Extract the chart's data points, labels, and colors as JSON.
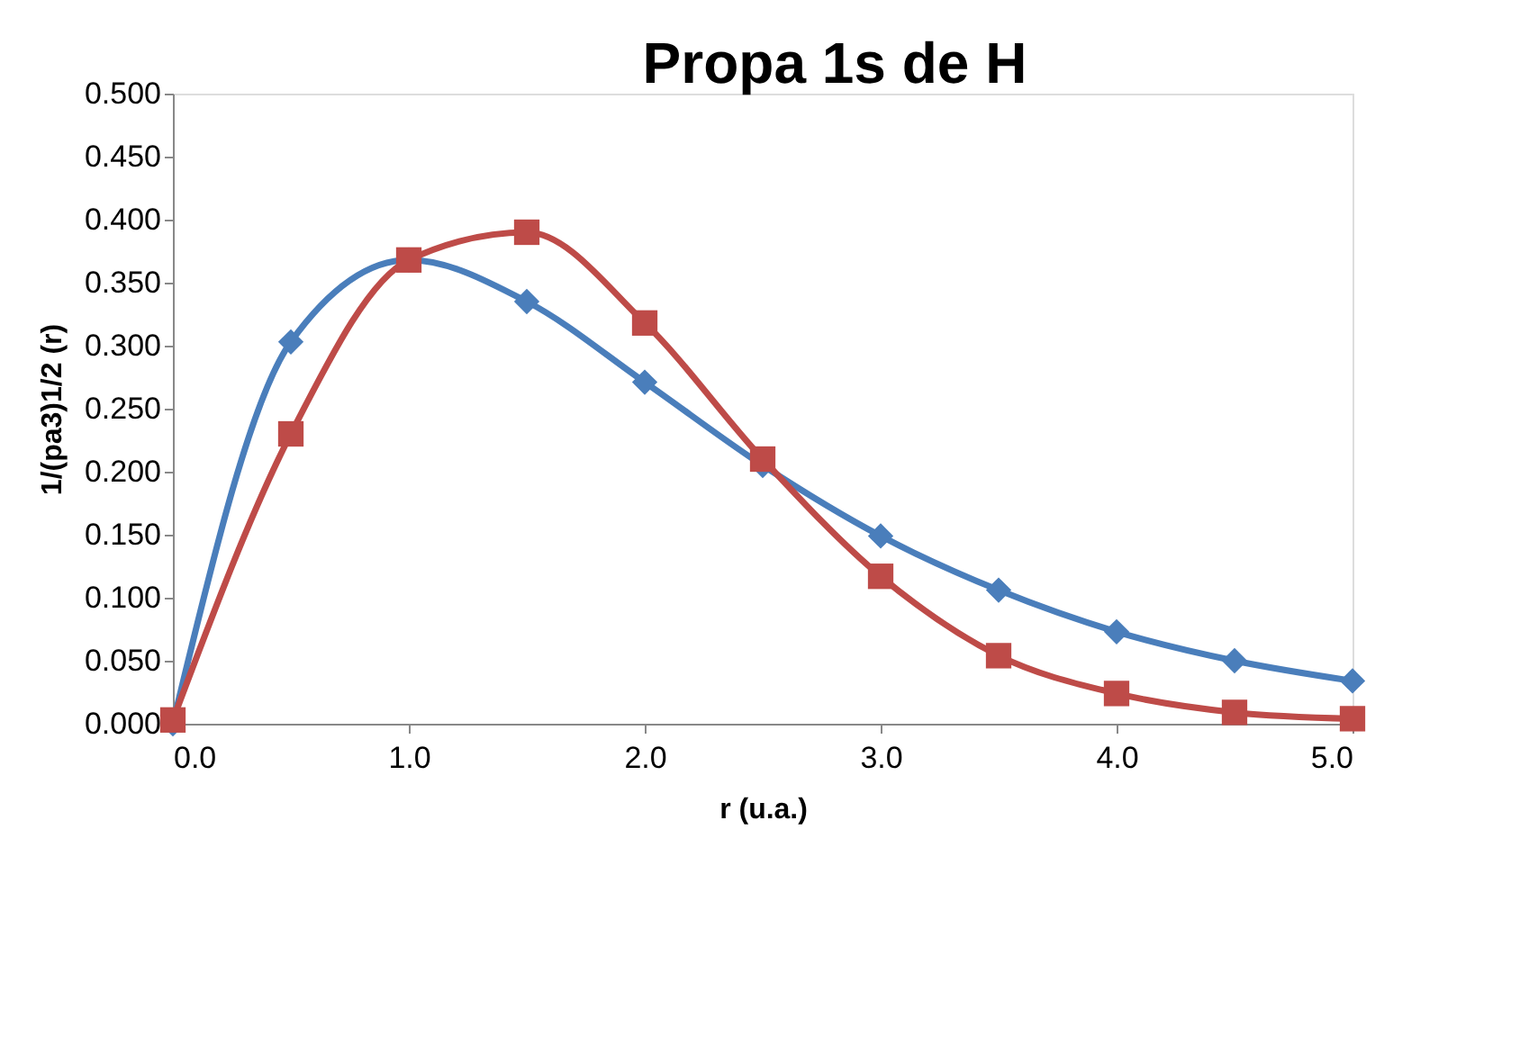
{
  "chart_data": {
    "type": "line",
    "title": "Propa 1s de H",
    "xlabel": "r (u.a.)",
    "ylabel": "1/(pa3)1/2 (r)",
    "x": [
      0,
      0.5,
      1,
      1.5,
      2,
      2.5,
      3,
      3.5,
      4,
      4.5,
      5
    ],
    "series": [
      {
        "color": "#4a7ebb",
        "marker": "diamond",
        "values": [
          0,
          0.303,
          0.368,
          0.335,
          0.271,
          0.205,
          0.149,
          0.106,
          0.073,
          0.05,
          0.034
        ]
      },
      {
        "color": "#be4b48",
        "marker": "square",
        "values": [
          0.003,
          0.23,
          0.368,
          0.39,
          0.318,
          0.21,
          0.117,
          0.054,
          0.024,
          0.009,
          0.004
        ]
      }
    ],
    "xlim": [
      0,
      5
    ],
    "xticks": [
      {
        "value": 0,
        "label": "0.0"
      },
      {
        "value": 1,
        "label": "1.0"
      },
      {
        "value": 2,
        "label": "2.0"
      },
      {
        "value": 3,
        "label": "3.0"
      },
      {
        "value": 4,
        "label": "4.0"
      },
      {
        "value": 5,
        "label": "5.0"
      }
    ],
    "ylim": [
      0,
      0.5
    ],
    "yticks": [
      {
        "value": 0,
        "label": "0.000"
      },
      {
        "value": 0.05,
        "label": "0.050"
      },
      {
        "value": 0.1,
        "label": "0.100"
      },
      {
        "value": 0.15,
        "label": "0.150"
      },
      {
        "value": 0.2,
        "label": "0.200"
      },
      {
        "value": 0.25,
        "label": "0.250"
      },
      {
        "value": 0.3,
        "label": "0.300"
      },
      {
        "value": 0.35,
        "label": "0.350"
      },
      {
        "value": 0.4,
        "label": "0.400"
      },
      {
        "value": 0.45,
        "label": "0.450"
      },
      {
        "value": 0.5,
        "label": "0.500"
      }
    ],
    "grid": false
  }
}
